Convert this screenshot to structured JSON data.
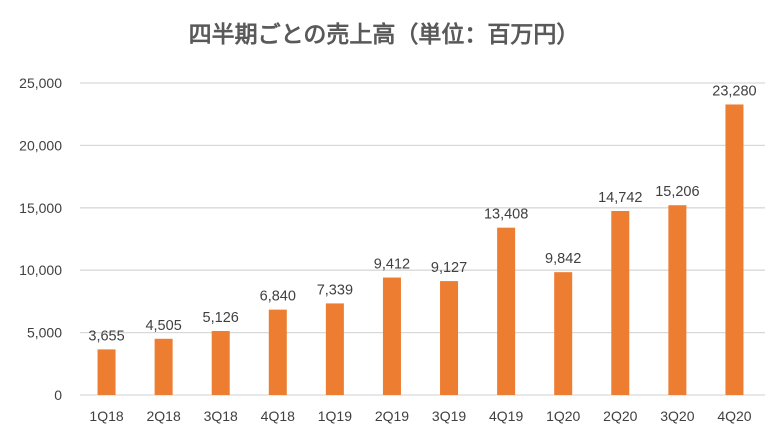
{
  "chart_data": {
    "type": "bar",
    "title": "四半期ごとの売上高（単位：百万円）",
    "xlabel": "",
    "ylabel": "",
    "categories": [
      "1Q18",
      "2Q18",
      "3Q18",
      "4Q18",
      "1Q19",
      "2Q19",
      "3Q19",
      "4Q19",
      "1Q20",
      "2Q20",
      "3Q20",
      "4Q20"
    ],
    "values": [
      3655,
      4505,
      5126,
      6840,
      7339,
      9412,
      9127,
      13408,
      9842,
      14742,
      15206,
      23280
    ],
    "value_labels": [
      "3,655",
      "4,505",
      "5,126",
      "6,840",
      "7,339",
      "9,412",
      "9,127",
      "13,408",
      "9,842",
      "14,742",
      "15,206",
      "23,280"
    ],
    "ylim": [
      0,
      25000
    ],
    "yticks": [
      0,
      5000,
      10000,
      15000,
      20000,
      25000
    ],
    "ytick_labels": [
      "0",
      "5,000",
      "10,000",
      "15,000",
      "20,000",
      "25,000"
    ],
    "grid": true,
    "legend": "none",
    "bar_color": "#ED7D31",
    "grid_color": "#D9D9D9"
  }
}
